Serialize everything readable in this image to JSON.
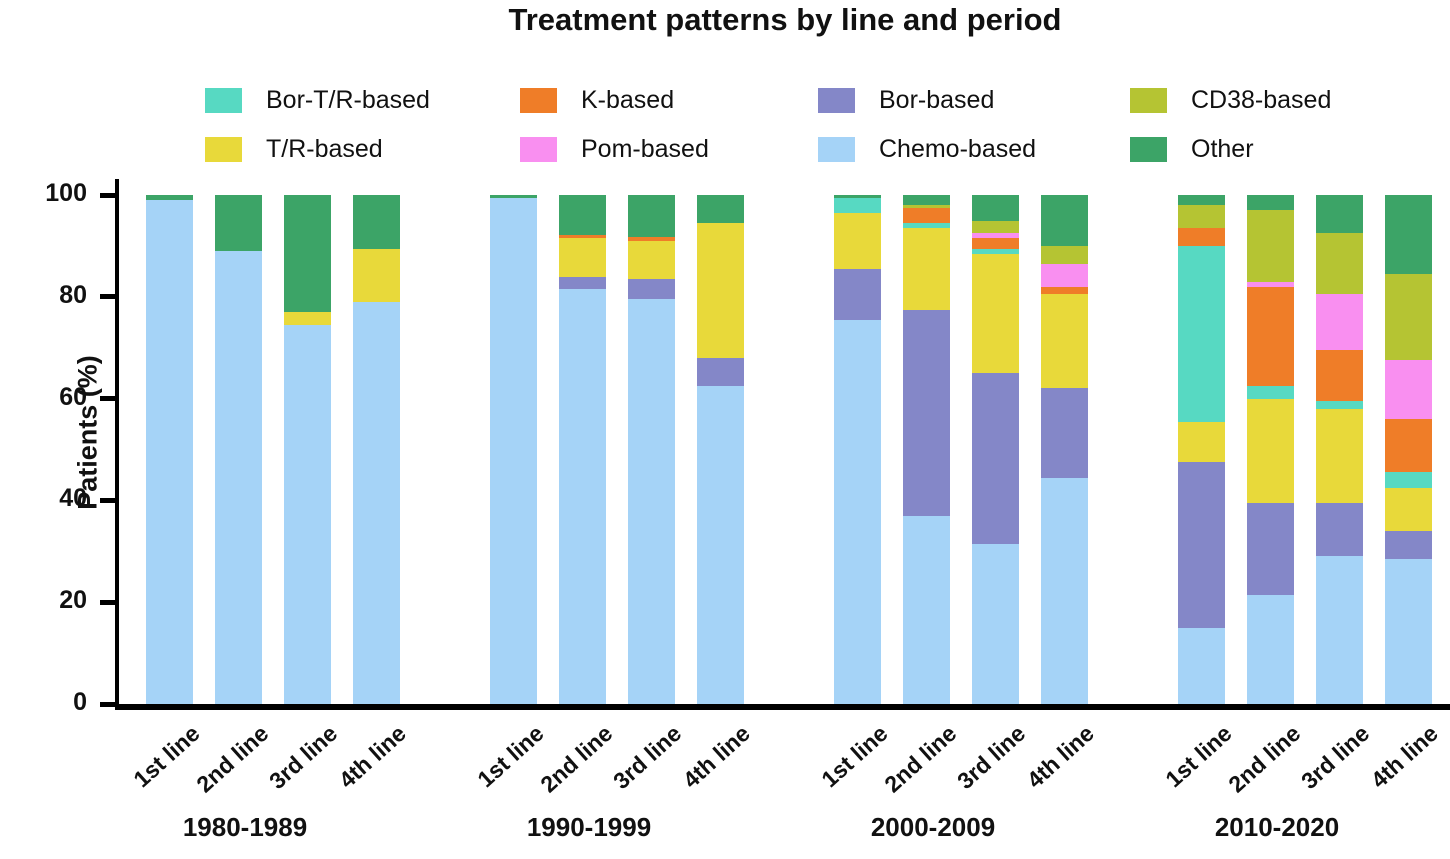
{
  "title": "Treatment patterns by line and period",
  "y_axis": {
    "label": "Patients (%)",
    "ticks": [
      0,
      20,
      40,
      60,
      80,
      100
    ],
    "max": 100
  },
  "legend": {
    "items": [
      {
        "label": "Bor-T/R-based",
        "color": "#57D9C2"
      },
      {
        "label": "K-based",
        "color": "#EF7D28"
      },
      {
        "label": "Bor-based",
        "color": "#8487C8"
      },
      {
        "label": "CD38-based",
        "color": "#B5C433"
      },
      {
        "label": "T/R-based",
        "color": "#E8D93A"
      },
      {
        "label": "Pom-based",
        "color": "#F98FF0"
      },
      {
        "label": "Chemo-based",
        "color": "#A5D3F7"
      },
      {
        "label": "Other",
        "color": "#3CA467"
      }
    ]
  },
  "chart_data": {
    "type": "bar",
    "subtype": "stacked-percent",
    "ylabel": "Patients (%)",
    "ylim": [
      0,
      100
    ],
    "grid": false,
    "legend_position": "top",
    "stack_order": [
      "Chemo-based",
      "Bor-based",
      "T/R-based",
      "Bor-T/R-based",
      "K-based",
      "Pom-based",
      "CD38-based",
      "Other"
    ],
    "groups": [
      {
        "period": "1980-1989",
        "bars": [
          {
            "line": "1st line",
            "values": {
              "Chemo-based": 99,
              "Other": 1
            }
          },
          {
            "line": "2nd line",
            "values": {
              "Chemo-based": 89,
              "Other": 11
            }
          },
          {
            "line": "3rd line",
            "values": {
              "Chemo-based": 74.5,
              "T/R-based": 2.5,
              "Other": 23
            }
          },
          {
            "line": "4th line",
            "values": {
              "Chemo-based": 79,
              "T/R-based": 10.5,
              "Other": 10.5
            }
          }
        ]
      },
      {
        "period": "1990-1999",
        "bars": [
          {
            "line": "1st line",
            "values": {
              "Chemo-based": 99.5,
              "Other": 0.5
            }
          },
          {
            "line": "2nd line",
            "values": {
              "Chemo-based": 81.5,
              "Bor-based": 2.5,
              "T/R-based": 7.5,
              "K-based": 0.7,
              "Other": 7.8
            }
          },
          {
            "line": "3rd line",
            "values": {
              "Chemo-based": 79.5,
              "Bor-based": 4,
              "T/R-based": 7.5,
              "K-based": 0.8,
              "Other": 8.2
            }
          },
          {
            "line": "4th line",
            "values": {
              "Chemo-based": 62.5,
              "Bor-based": 5.5,
              "T/R-based": 26.5,
              "Other": 5.5
            }
          }
        ]
      },
      {
        "period": "2000-2009",
        "bars": [
          {
            "line": "1st line",
            "values": {
              "Chemo-based": 75.5,
              "Bor-based": 10,
              "T/R-based": 11,
              "Bor-T/R-based": 3,
              "Other": 0.5
            }
          },
          {
            "line": "2nd line",
            "values": {
              "Chemo-based": 37,
              "Bor-based": 40.5,
              "T/R-based": 16,
              "Bor-T/R-based": 1,
              "K-based": 3,
              "CD38-based": 0.5,
              "Other": 2
            }
          },
          {
            "line": "3rd line",
            "values": {
              "Chemo-based": 31.5,
              "Bor-based": 33.5,
              "T/R-based": 23.5,
              "Bor-T/R-based": 1,
              "K-based": 2,
              "Pom-based": 1,
              "CD38-based": 2.5,
              "Other": 5
            }
          },
          {
            "line": "4th line",
            "values": {
              "Chemo-based": 44.5,
              "Bor-based": 17.5,
              "T/R-based": 18.5,
              "K-based": 1.5,
              "Pom-based": 4.5,
              "CD38-based": 3.5,
              "Other": 10
            }
          }
        ]
      },
      {
        "period": "2010-2020",
        "bars": [
          {
            "line": "1st line",
            "values": {
              "Chemo-based": 15,
              "Bor-based": 32.5,
              "T/R-based": 8,
              "Bor-T/R-based": 34.5,
              "K-based": 3.5,
              "CD38-based": 4.5,
              "Other": 2
            }
          },
          {
            "line": "2nd line",
            "values": {
              "Chemo-based": 21.5,
              "Bor-based": 18,
              "T/R-based": 20.5,
              "Bor-T/R-based": 2.5,
              "K-based": 19.5,
              "Pom-based": 1,
              "CD38-based": 14,
              "Other": 3
            }
          },
          {
            "line": "3rd line",
            "values": {
              "Chemo-based": 29,
              "Bor-based": 10.5,
              "T/R-based": 18.5,
              "Bor-T/R-based": 1.5,
              "K-based": 10,
              "Pom-based": 11,
              "CD38-based": 12,
              "Other": 7.5
            }
          },
          {
            "line": "4th line",
            "values": {
              "Chemo-based": 28.5,
              "Bor-based": 5.5,
              "T/R-based": 8.5,
              "Bor-T/R-based": 3,
              "K-based": 10.5,
              "Pom-based": 11.5,
              "CD38-based": 17,
              "Other": 15.5
            }
          }
        ]
      }
    ]
  }
}
